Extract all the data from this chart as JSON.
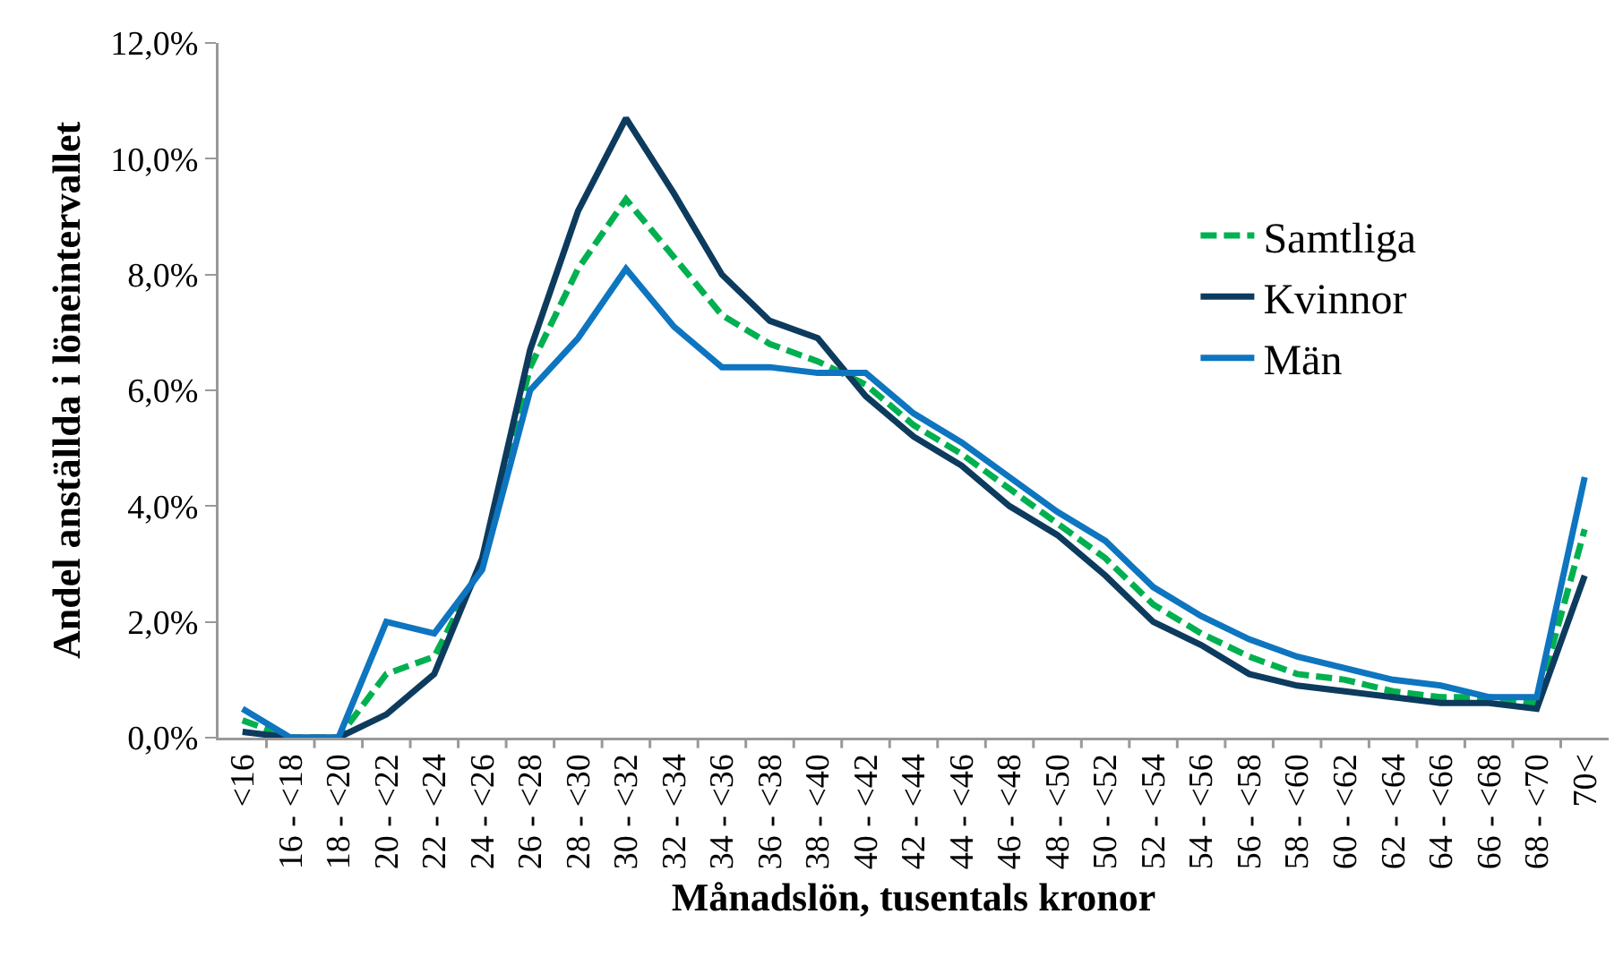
{
  "chart_data": {
    "type": "line",
    "xlabel": "Månadslön, tusentals kronor",
    "ylabel": "Andel anställda i löneintervallet",
    "categories": [
      "<16",
      "16 - <18",
      "18 - <20",
      "20 - <22",
      "22 - <24",
      "24 - <26",
      "26 - <28",
      "28 - <30",
      "30 - <32",
      "32 - <34",
      "34 - <36",
      "36 - <38",
      "38 - <40",
      "40 - <42",
      "42 - <44",
      "44 - <46",
      "46 - <48",
      "48 - <50",
      "50 - <52",
      "52 - <54",
      "54 - <56",
      "56 - <58",
      "58 - <60",
      "60 - <62",
      "62 - <64",
      "64 - <66",
      "66 - <68",
      "68 - <70",
      "70<"
    ],
    "series": [
      {
        "name": "Samtliga",
        "color": "#00b050",
        "line_style": "dashed",
        "values": [
          0.3,
          0.0,
          0.0,
          1.1,
          1.4,
          3.0,
          6.4,
          8.1,
          9.3,
          8.3,
          7.3,
          6.8,
          6.5,
          6.1,
          5.4,
          4.9,
          4.3,
          3.7,
          3.1,
          2.3,
          1.8,
          1.4,
          1.1,
          1.0,
          0.8,
          0.7,
          0.7,
          0.6,
          3.6
        ]
      },
      {
        "name": "Kvinnor",
        "color": "#0d3b5e",
        "line_style": "solid",
        "values": [
          0.1,
          0.0,
          0.0,
          0.4,
          1.1,
          3.1,
          6.7,
          9.1,
          10.7,
          9.4,
          8.0,
          7.2,
          6.9,
          5.9,
          5.2,
          4.7,
          4.0,
          3.5,
          2.8,
          2.0,
          1.6,
          1.1,
          0.9,
          0.8,
          0.7,
          0.6,
          0.6,
          0.5,
          2.8
        ]
      },
      {
        "name": "Män",
        "color": "#0e75c0",
        "line_style": "solid",
        "values": [
          0.5,
          0.0,
          0.0,
          2.0,
          1.8,
          2.9,
          6.0,
          6.9,
          8.1,
          7.1,
          6.4,
          6.4,
          6.3,
          6.3,
          5.6,
          5.1,
          4.5,
          3.9,
          3.4,
          2.6,
          2.1,
          1.7,
          1.4,
          1.2,
          1.0,
          0.9,
          0.7,
          0.7,
          4.5
        ]
      }
    ],
    "ylim": [
      0,
      12
    ],
    "yticks": [
      {
        "value": 0,
        "label": "0,0%"
      },
      {
        "value": 2,
        "label": "2,0%"
      },
      {
        "value": 4,
        "label": "4,0%"
      },
      {
        "value": 6,
        "label": "6,0%"
      },
      {
        "value": 8,
        "label": "8,0%"
      },
      {
        "value": 10,
        "label": "10,0%"
      },
      {
        "value": 12,
        "label": "12,0%"
      }
    ],
    "grid": false,
    "legend": "right",
    "marker": "none"
  }
}
